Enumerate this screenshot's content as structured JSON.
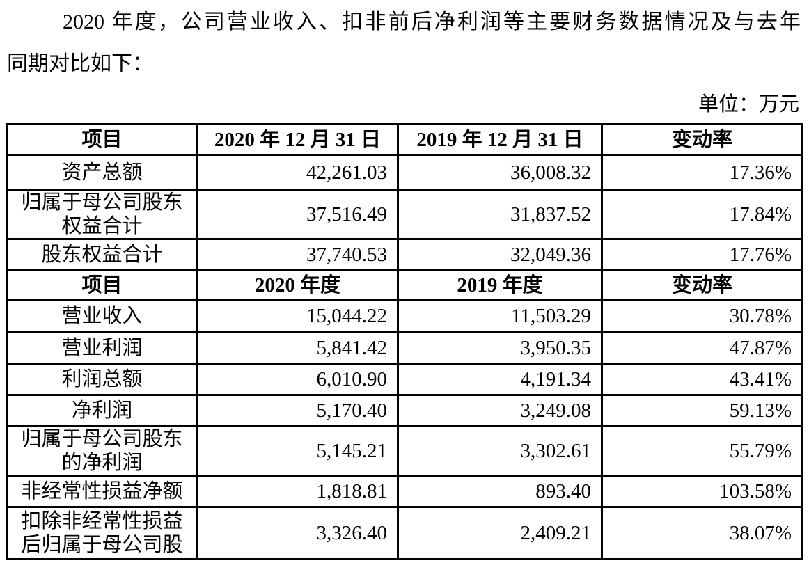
{
  "document": {
    "intro_line1": "2020 年度，公司营业收入、扣非前后净利润等主要财务数据情况及与去年",
    "intro_line2": "同期对比如下：",
    "unit_label": "单位：万元"
  },
  "table": {
    "section1": {
      "header": [
        "项目",
        "2020 年 12 月 31 日",
        "2019 年 12 月 31 日",
        "变动率"
      ],
      "rows": [
        {
          "label": "资产总额",
          "v2020": "42,261.03",
          "v2019": "36,008.32",
          "change": "17.36%"
        },
        {
          "label": "归属于母公司股东\n权益合计",
          "v2020": "37,516.49",
          "v2019": "31,837.52",
          "change": "17.84%"
        },
        {
          "label": "股东权益合计",
          "v2020": "37,740.53",
          "v2019": "32,049.36",
          "change": "17.76%"
        }
      ]
    },
    "section2": {
      "header": [
        "项目",
        "2020 年度",
        "2019 年度",
        "变动率"
      ],
      "rows": [
        {
          "label": "营业收入",
          "v2020": "15,044.22",
          "v2019": "11,503.29",
          "change": "30.78%"
        },
        {
          "label": "营业利润",
          "v2020": "5,841.42",
          "v2019": "3,950.35",
          "change": "47.87%"
        },
        {
          "label": "利润总额",
          "v2020": "6,010.90",
          "v2019": "4,191.34",
          "change": "43.41%"
        },
        {
          "label": "净利润",
          "v2020": "5,170.40",
          "v2019": "3,249.08",
          "change": "59.13%"
        },
        {
          "label": "归属于母公司股东\n的净利润",
          "v2020": "5,145.21",
          "v2019": "3,302.61",
          "change": "55.79%"
        },
        {
          "label": "非经常性损益净额",
          "v2020": "1,818.81",
          "v2019": "893.40",
          "change": "103.58%"
        },
        {
          "label": "扣除非经常性损益\n后归属于母公司股",
          "v2020": "3,326.40",
          "v2019": "2,409.21",
          "change": "38.07%"
        }
      ]
    }
  }
}
